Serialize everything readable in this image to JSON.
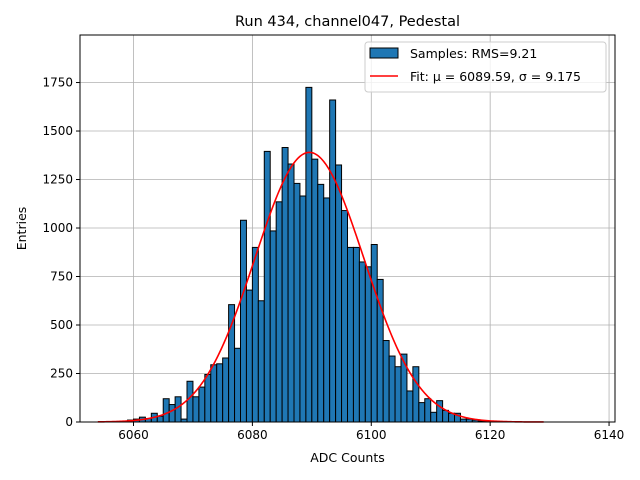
{
  "chart_data": {
    "type": "bar",
    "title": "Run 434, channel047, Pedestal",
    "xlabel": "ADC Counts",
    "ylabel": "Entries",
    "xlim": [
      6051,
      6141
    ],
    "ylim": [
      0,
      1995
    ],
    "xticks": [
      6060,
      6080,
      6100,
      6120,
      6140
    ],
    "yticks": [
      0,
      250,
      500,
      750,
      1000,
      1250,
      1500,
      1750
    ],
    "grid": true,
    "legend_position": "top-right",
    "bin_width": 1,
    "bins": {
      "x": [
        6058,
        6059,
        6060,
        6061,
        6062,
        6063,
        6064,
        6065,
        6066,
        6067,
        6068,
        6069,
        6070,
        6071,
        6072,
        6073,
        6074,
        6075,
        6076,
        6077,
        6078,
        6079,
        6080,
        6081,
        6082,
        6083,
        6084,
        6085,
        6086,
        6087,
        6088,
        6089,
        6090,
        6091,
        6092,
        6093,
        6094,
        6095,
        6096,
        6097,
        6098,
        6099,
        6100,
        6101,
        6102,
        6103,
        6104,
        6105,
        6106,
        6107,
        6108,
        6109,
        6110,
        6111,
        6112,
        6113,
        6114,
        6115,
        6116,
        6117,
        6118,
        6119,
        6120
      ],
      "counts": [
        3,
        10,
        15,
        25,
        18,
        45,
        30,
        120,
        90,
        130,
        15,
        210,
        130,
        180,
        245,
        295,
        300,
        330,
        605,
        380,
        1040,
        680,
        900,
        625,
        1395,
        985,
        1135,
        1415,
        1330,
        1230,
        1165,
        1725,
        1355,
        1225,
        1155,
        1660,
        1325,
        1090,
        900,
        900,
        825,
        800,
        915,
        735,
        420,
        340,
        285,
        350,
        160,
        285,
        100,
        120,
        50,
        110,
        60,
        45,
        45,
        15,
        15,
        10,
        5,
        3,
        2
      ]
    },
    "series": [
      {
        "name": "Samples: RMS=9.21",
        "type": "histogram",
        "color": "#1f77b4"
      },
      {
        "name": "Fit: μ = 6089.59, σ = 9.175",
        "type": "gaussian",
        "mu": 6089.59,
        "sigma": 9.175,
        "amplitude": 1390,
        "x_range": [
          6054,
          6129
        ],
        "color": "#ff0000"
      }
    ]
  }
}
